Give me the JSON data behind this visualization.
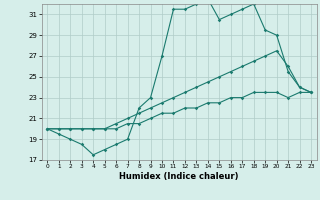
{
  "title": "",
  "xlabel": "Humidex (Indice chaleur)",
  "ylabel": "",
  "xlim": [
    -0.5,
    23.5
  ],
  "ylim": [
    17,
    32
  ],
  "yticks": [
    17,
    19,
    21,
    23,
    25,
    27,
    29,
    31
  ],
  "xticks": [
    0,
    1,
    2,
    3,
    4,
    5,
    6,
    7,
    8,
    9,
    10,
    11,
    12,
    13,
    14,
    15,
    16,
    17,
    18,
    19,
    20,
    21,
    22,
    23
  ],
  "background_color": "#d6eeea",
  "grid_color": "#b0ccc8",
  "line_color": "#1a7a6e",
  "line1_x": [
    0,
    1,
    2,
    3,
    4,
    5,
    6,
    7,
    8,
    9,
    10,
    11,
    12,
    13,
    14,
    15,
    16,
    17,
    18,
    19,
    20,
    21,
    22,
    23
  ],
  "line1_y": [
    20.0,
    19.5,
    19.0,
    18.5,
    17.5,
    18.0,
    18.5,
    19.0,
    22.0,
    23.0,
    27.0,
    31.5,
    31.5,
    32.0,
    32.5,
    30.5,
    31.0,
    31.5,
    32.0,
    29.5,
    29.0,
    25.5,
    24.0,
    23.5
  ],
  "line2_x": [
    0,
    1,
    2,
    3,
    4,
    5,
    6,
    7,
    8,
    9,
    10,
    11,
    12,
    13,
    14,
    15,
    16,
    17,
    18,
    19,
    20,
    21,
    22,
    23
  ],
  "line2_y": [
    20.0,
    20.0,
    20.0,
    20.0,
    20.0,
    20.0,
    20.5,
    21.0,
    21.5,
    22.0,
    22.5,
    23.0,
    23.5,
    24.0,
    24.5,
    25.0,
    25.5,
    26.0,
    26.5,
    27.0,
    27.5,
    26.0,
    24.0,
    23.5
  ],
  "line3_x": [
    0,
    1,
    2,
    3,
    4,
    5,
    6,
    7,
    8,
    9,
    10,
    11,
    12,
    13,
    14,
    15,
    16,
    17,
    18,
    19,
    20,
    21,
    22,
    23
  ],
  "line3_y": [
    20.0,
    20.0,
    20.0,
    20.0,
    20.0,
    20.0,
    20.0,
    20.5,
    20.5,
    21.0,
    21.5,
    21.5,
    22.0,
    22.0,
    22.5,
    22.5,
    23.0,
    23.0,
    23.5,
    23.5,
    23.5,
    23.0,
    23.5,
    23.5
  ]
}
